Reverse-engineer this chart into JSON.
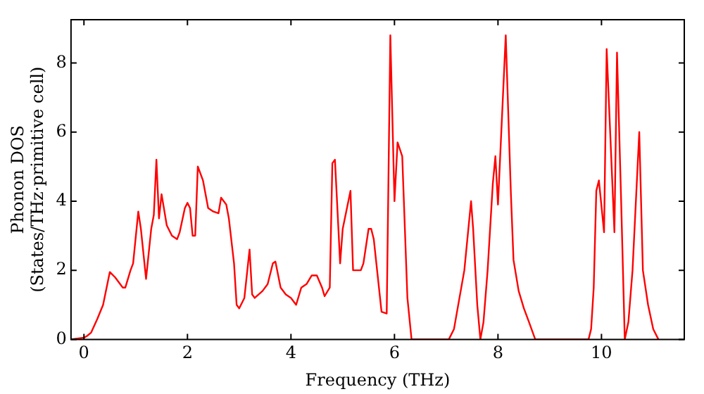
{
  "chart_data": {
    "type": "line",
    "xlabel": "Frequency (THz)",
    "ylabel": "Phonon DOS\n(States/THz·primitive cell)",
    "xlim": [
      -0.25,
      11.6
    ],
    "ylim": [
      0,
      9.25
    ],
    "xticks": [
      0,
      2,
      4,
      6,
      8,
      10
    ],
    "yticks": [
      0,
      2,
      4,
      6,
      8
    ],
    "grid": false,
    "legend": false,
    "marker": "none",
    "line_style": "solid",
    "series": [
      {
        "color": "#ff0000",
        "x": [
          -0.25,
          0,
          0.06,
          0.14,
          0.26,
          0.37,
          0.5,
          0.6,
          0.75,
          0.8,
          0.9,
          0.95,
          1.05,
          1.1,
          1.2,
          1.3,
          1.35,
          1.4,
          1.45,
          1.5,
          1.6,
          1.7,
          1.8,
          1.85,
          1.95,
          2.0,
          2.05,
          2.1,
          2.15,
          2.2,
          2.3,
          2.4,
          2.5,
          2.6,
          2.65,
          2.75,
          2.8,
          2.9,
          2.95,
          3.0,
          3.1,
          3.2,
          3.25,
          3.3,
          3.45,
          3.55,
          3.65,
          3.7,
          3.8,
          3.9,
          4.0,
          4.1,
          4.2,
          4.3,
          4.4,
          4.5,
          4.6,
          4.65,
          4.75,
          4.8,
          4.85,
          4.95,
          5.0,
          5.15,
          5.2,
          5.35,
          5.4,
          5.5,
          5.55,
          5.6,
          5.7,
          5.75,
          5.85,
          5.92,
          6.0,
          6.06,
          6.15,
          6.25,
          6.33,
          7.05,
          7.15,
          7.35,
          7.48,
          7.52,
          7.6,
          7.66,
          7.72,
          7.8,
          7.9,
          7.95,
          8.0,
          8.15,
          8.25,
          8.3,
          8.4,
          8.5,
          8.6,
          8.72,
          9.75,
          9.8,
          9.85,
          9.9,
          9.95,
          10.05,
          10.1,
          10.25,
          10.3,
          10.38,
          10.45,
          10.52,
          10.6,
          10.73,
          10.8,
          10.9,
          11.0,
          11.1
        ],
        "values": [
          0,
          0.05,
          0.1,
          0.2,
          0.6,
          1.0,
          1.95,
          1.8,
          1.5,
          1.5,
          2.0,
          2.2,
          3.7,
          3.2,
          1.75,
          3.2,
          3.6,
          5.2,
          3.5,
          4.2,
          3.3,
          3.0,
          2.9,
          3.1,
          3.8,
          3.95,
          3.8,
          3.0,
          3.0,
          5.0,
          4.6,
          3.8,
          3.7,
          3.65,
          4.1,
          3.9,
          3.5,
          2.2,
          1.0,
          0.9,
          1.2,
          2.6,
          1.3,
          1.2,
          1.4,
          1.6,
          2.2,
          2.25,
          1.5,
          1.3,
          1.2,
          1.0,
          1.5,
          1.6,
          1.85,
          1.85,
          1.5,
          1.25,
          1.5,
          5.1,
          5.2,
          2.2,
          3.2,
          4.3,
          2.0,
          2.0,
          2.2,
          3.2,
          3.2,
          2.9,
          1.5,
          0.8,
          0.75,
          8.8,
          4.0,
          5.7,
          5.3,
          1.2,
          0,
          0,
          0.3,
          2.0,
          4.0,
          3.2,
          1.0,
          0,
          0.5,
          2.0,
          4.5,
          5.3,
          3.9,
          8.8,
          4.2,
          2.3,
          1.4,
          0.9,
          0.5,
          0,
          0,
          0.3,
          1.5,
          4.3,
          4.6,
          3.1,
          8.4,
          3.1,
          8.3,
          4.0,
          0,
          0.5,
          2.0,
          6.0,
          2.0,
          1.0,
          0.3,
          0
        ]
      }
    ]
  }
}
